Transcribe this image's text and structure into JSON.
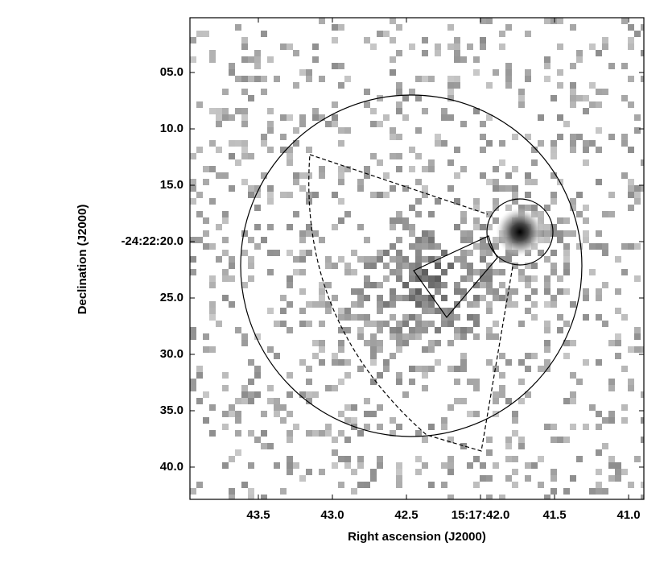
{
  "chart_data": {
    "type": "image",
    "xlabel": "Right ascension (J2000)",
    "ylabel": "Declination (J2000)",
    "xlim": [
      43.962,
      40.897
    ],
    "xticks": [
      {
        "value": 43.5,
        "label": "43.5"
      },
      {
        "value": 43.0,
        "label": "43.0"
      },
      {
        "value": 42.5,
        "label": "42.5"
      },
      {
        "value": 42.0,
        "label": "15:17:42.0"
      },
      {
        "value": 41.5,
        "label": "41.5"
      },
      {
        "value": 41.0,
        "label": "41.0"
      }
    ],
    "ylim": [
      0.14,
      42.86
    ],
    "yticks": [
      {
        "value": 5,
        "label": "05.0"
      },
      {
        "value": 10,
        "label": "10.0"
      },
      {
        "value": 15,
        "label": "15.0"
      },
      {
        "value": 20,
        "label": "-24:22:20.0"
      },
      {
        "value": 25,
        "label": "25.0"
      },
      {
        "value": 30,
        "label": "30.0"
      },
      {
        "value": 35,
        "label": "35.0"
      },
      {
        "value": 40,
        "label": "40.0"
      }
    ]
  }
}
